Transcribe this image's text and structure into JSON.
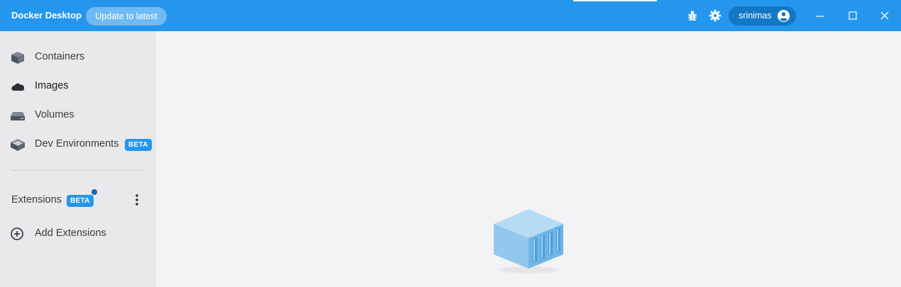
{
  "titlebar": {
    "app_title": "Docker Desktop",
    "update_label": "Update to latest",
    "icons": [
      "bug-icon",
      "gear-icon"
    ],
    "user": {
      "name": "srinimas",
      "icon": "account-circle-icon"
    },
    "window_controls": [
      "minimize-icon",
      "maximize-icon",
      "close-icon"
    ],
    "accent": "#2496ed"
  },
  "sidebar": {
    "items": [
      {
        "label": "Containers",
        "icon": "container-icon"
      },
      {
        "label": "Images",
        "icon": "cloud-icon",
        "active": true
      },
      {
        "label": "Volumes",
        "icon": "volume-icon"
      },
      {
        "label": "Dev Environments",
        "icon": "dev-env-icon",
        "badge": "BETA"
      }
    ],
    "extensions": {
      "label": "Extensions",
      "badge": "BETA",
      "menu_icon": "kebab-menu-icon"
    },
    "add_extensions": {
      "label": "Add Extensions",
      "icon": "add-circle-icon"
    }
  },
  "main": {
    "illustration": "container-box-icon"
  }
}
